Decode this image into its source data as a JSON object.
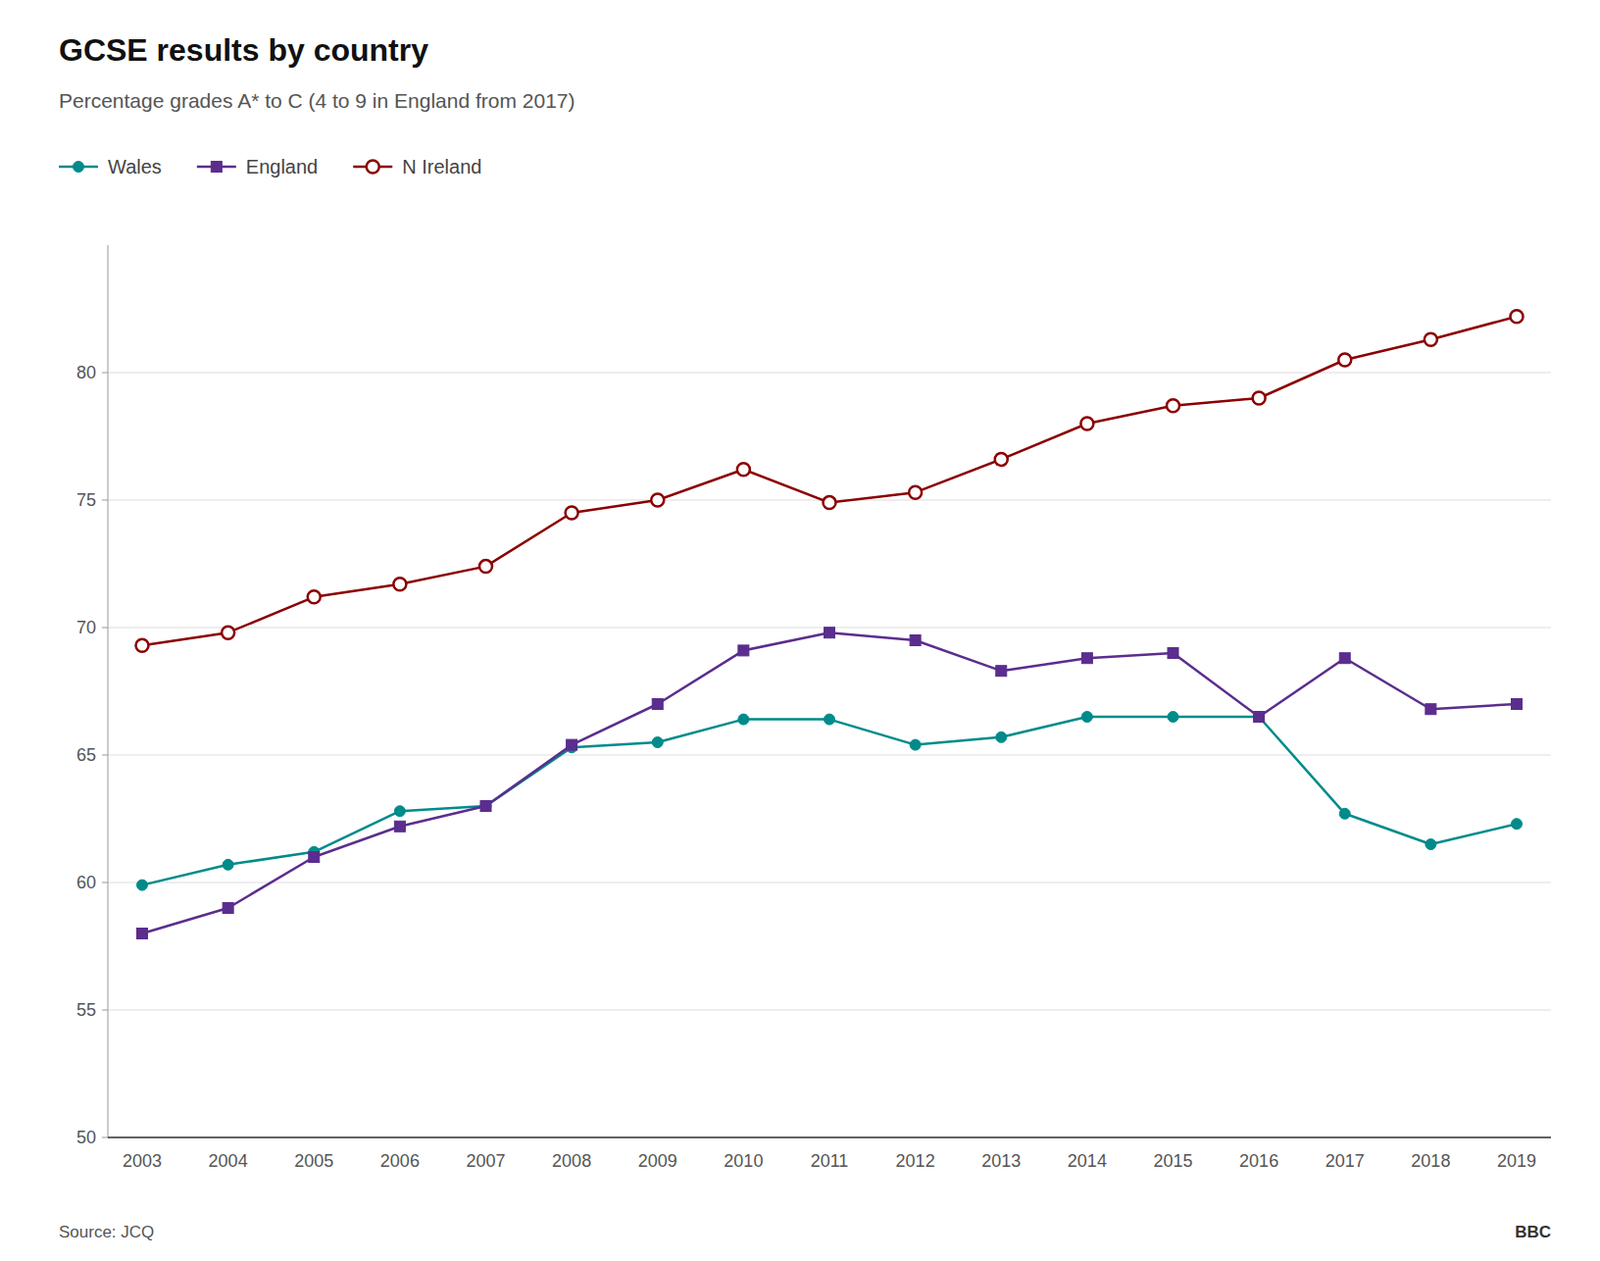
{
  "chart_data": {
    "type": "line",
    "title": "GCSE results by country",
    "subtitle": "Percentage grades A* to C (4 to 9 in England from 2017)",
    "source": "Source: JCQ",
    "annotations": [
      "BBC"
    ],
    "categories": [
      "2003",
      "2004",
      "2005",
      "2006",
      "2007",
      "2008",
      "2009",
      "2010",
      "2011",
      "2012",
      "2013",
      "2014",
      "2015",
      "2016",
      "2017",
      "2018",
      "2019"
    ],
    "series": [
      {
        "name": "Wales",
        "color": "#008B8B",
        "marker": "circle",
        "values": [
          59.9,
          60.7,
          61.2,
          62.8,
          63.0,
          65.3,
          65.5,
          66.4,
          66.4,
          65.4,
          65.7,
          66.5,
          66.5,
          66.5,
          62.7,
          61.5,
          62.3
        ]
      },
      {
        "name": "England",
        "color": "#5B2D8E",
        "marker": "square",
        "values": [
          58.0,
          59.0,
          61.0,
          62.2,
          63.0,
          65.4,
          67.0,
          69.1,
          69.8,
          69.5,
          68.3,
          68.8,
          69.0,
          66.5,
          68.8,
          66.8,
          67.0
        ]
      },
      {
        "name": "N Ireland",
        "color": "#8B0000",
        "marker": "open-circle",
        "values": [
          69.3,
          69.8,
          71.2,
          71.7,
          72.4,
          74.5,
          75.0,
          76.2,
          74.9,
          75.3,
          76.6,
          78.0,
          78.7,
          79.0,
          80.5,
          81.3,
          82.2
        ]
      }
    ],
    "ylim": [
      50,
      85
    ],
    "yticks": [
      50,
      55,
      60,
      65,
      70,
      75,
      80
    ],
    "grid": true,
    "legend": "top-left"
  }
}
